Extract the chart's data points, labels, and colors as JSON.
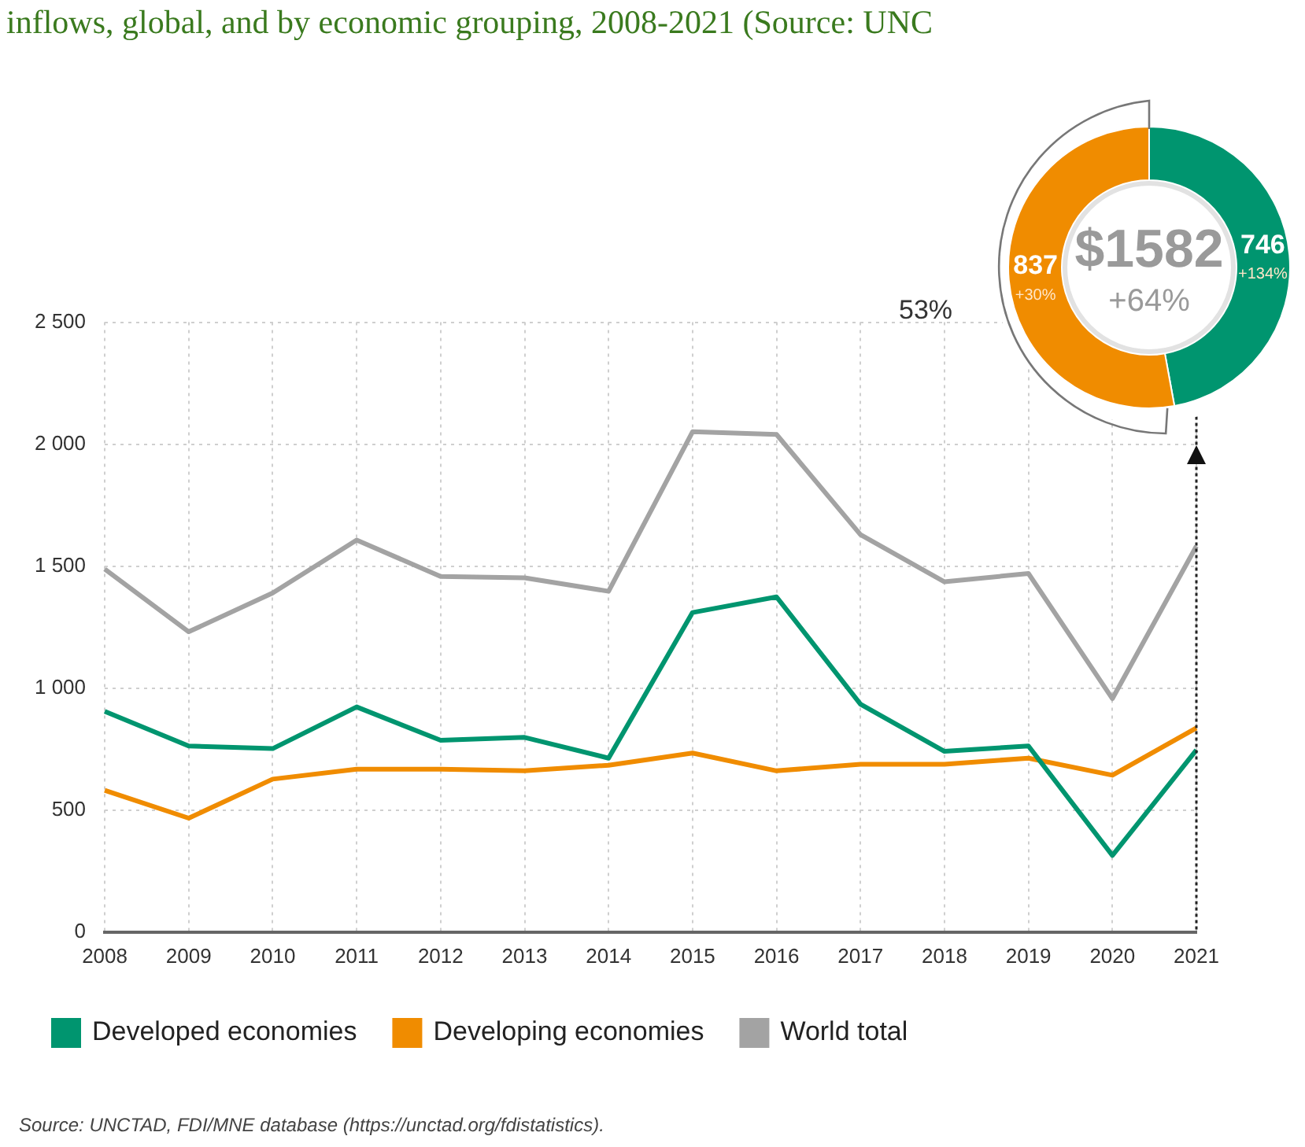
{
  "chart_data": [
    {
      "type": "line",
      "title": "inflows, global, and by economic grouping, 2008-2021 (Source: UNC",
      "categories": [
        "2008",
        "2009",
        "2010",
        "2011",
        "2012",
        "2013",
        "2014",
        "2015",
        "2016",
        "2017",
        "2018",
        "2019",
        "2020",
        "2021"
      ],
      "series": [
        {
          "name": "Developed economies",
          "color": "#00956f",
          "values": [
            905,
            763,
            752,
            923,
            786,
            798,
            713,
            1310,
            1374,
            934,
            741,
            763,
            314,
            746
          ]
        },
        {
          "name": "Developing economies",
          "color": "#f08c00",
          "values": [
            581,
            467,
            627,
            668,
            668,
            661,
            684,
            734,
            661,
            688,
            688,
            713,
            643,
            837
          ]
        },
        {
          "name": "World total",
          "color": "#a3a3a3",
          "values": [
            1488,
            1231,
            1390,
            1607,
            1458,
            1452,
            1397,
            2051,
            2040,
            1629,
            1436,
            1470,
            957,
            1582
          ]
        }
      ],
      "ylim": [
        0,
        2500
      ],
      "yticks": [
        0,
        500,
        {
          "value": 1000,
          "label": "1 000"
        },
        {
          "value": 1500,
          "label": "1 500"
        },
        {
          "value": 2000,
          "label": "2 000"
        },
        {
          "value": 2500,
          "label": "2 500"
        }
      ],
      "ref_lines": [
        {
          "axis": "x",
          "value": "2021",
          "color": "#222222",
          "line_style": "dotted"
        }
      ],
      "grid": true,
      "legend": "bottom",
      "marker": "none",
      "line_style": "solid",
      "annotations": [
        "Source: UNCTAD, FDI/MNE database (https://unctad.org/fdistatistics)."
      ]
    },
    {
      "type": "donut",
      "categories": [
        null,
        null
      ],
      "values": [
        746,
        837
      ],
      "colors": [
        "#00956f",
        "#f08c00"
      ],
      "value_labels": [
        "746",
        "837"
      ],
      "annotations": [
        "+134%",
        "+30%",
        "$1582",
        "+64%",
        "53%"
      ]
    }
  ]
}
